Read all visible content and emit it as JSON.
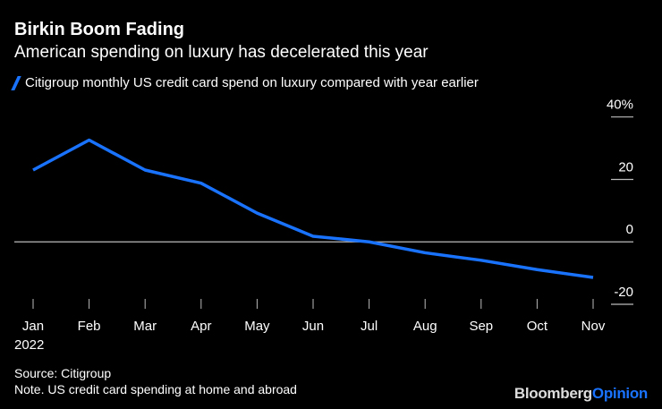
{
  "chart_data": {
    "type": "line",
    "title": "Birkin Boom Fading",
    "subtitle": "American spending on luxury has decelerated this year",
    "categories": [
      "Jan",
      "Feb",
      "Mar",
      "Apr",
      "May",
      "Jun",
      "Jul",
      "Aug",
      "Sep",
      "Oct",
      "Nov"
    ],
    "year_label": "2022",
    "series": [
      {
        "name": "Citigroup monthly US credit card spend on luxury compared with year earlier",
        "color": "#1a73ff",
        "values": [
          23,
          32.6,
          23,
          18.8,
          9.2,
          1.8,
          0,
          -3.5,
          -5.9,
          -8.9,
          -11.4
        ]
      }
    ],
    "ylim": [
      -20,
      40
    ],
    "yticks": [
      40,
      20,
      0,
      -20
    ],
    "ytick_labels": [
      "40%",
      "20",
      "0",
      "-20"
    ],
    "grid": false,
    "zero_line": true,
    "legend_position": "top-left"
  },
  "footer": {
    "source": "Source: Citigroup",
    "note": "Note. US credit card spending at home and abroad",
    "logo_main": "Bloomberg",
    "logo_accent": "Opinion"
  }
}
